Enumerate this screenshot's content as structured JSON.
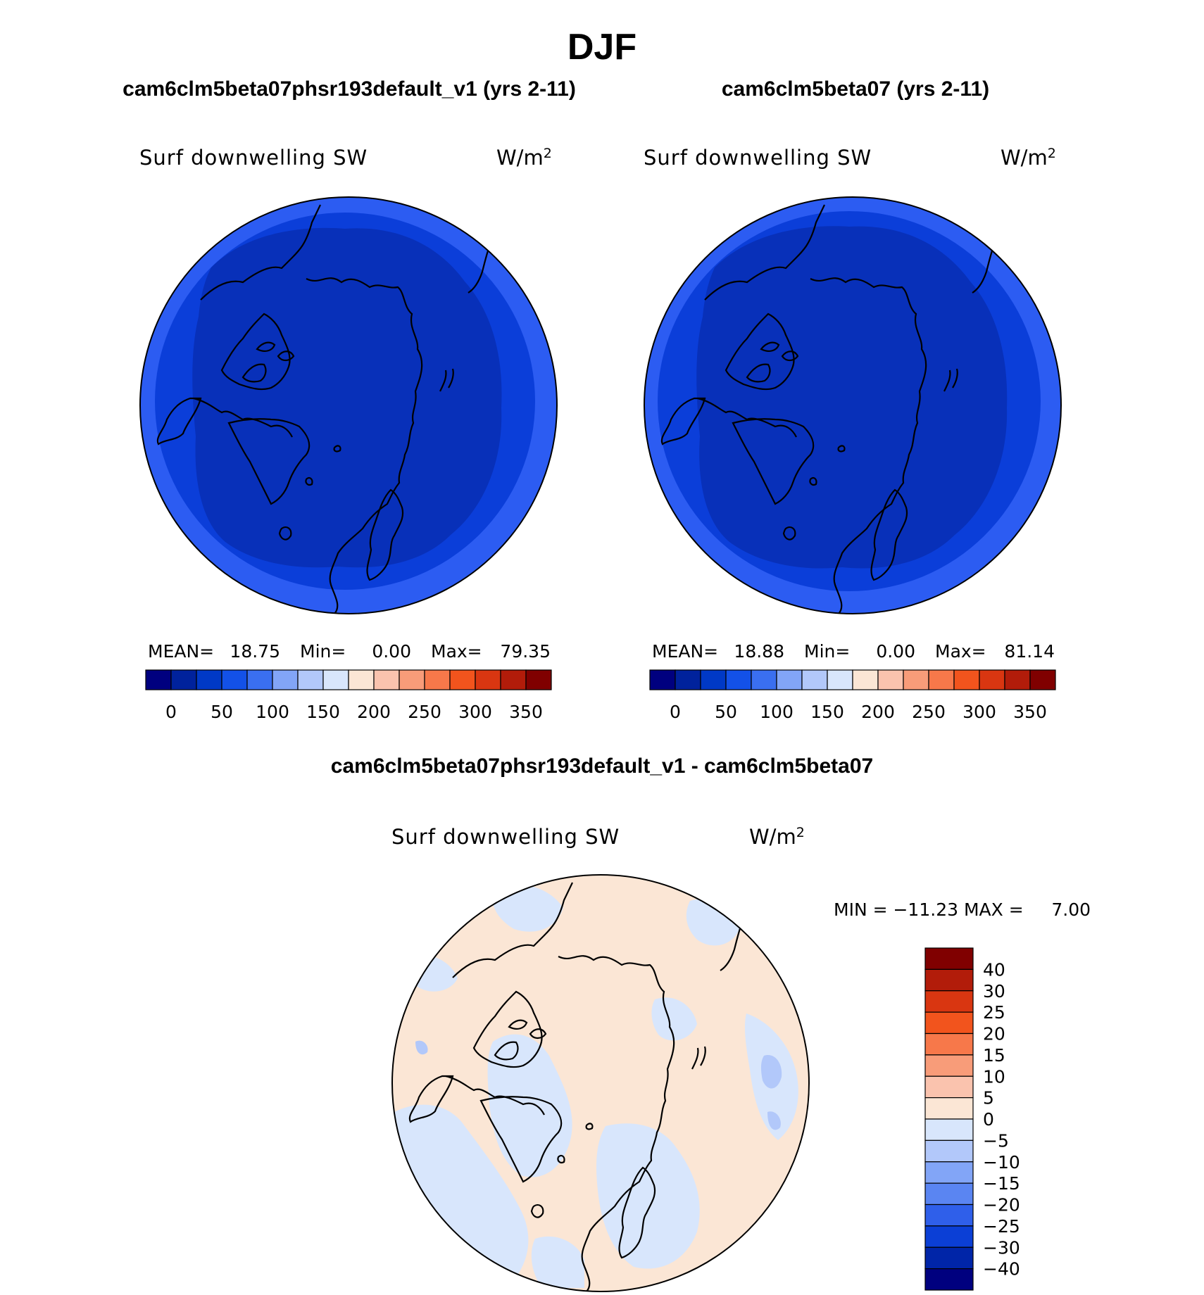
{
  "figure": {
    "title": "DJF"
  },
  "colors": {
    "abs_levels": [
      "#00007f",
      "#00229c",
      "#0039c6",
      "#1351e8",
      "#3a6ff0",
      "#82a5f7",
      "#b2c8fa",
      "#d8e6fc",
      "#fbe6d5",
      "#fac3ae",
      "#f89c79",
      "#f7784a",
      "#f2541d",
      "#d93611",
      "#b21c0a",
      "#800000"
    ],
    "map_bg_abs_outer": "#2c5cf2",
    "map_bg_abs_mid": "#0b3ed9",
    "map_bg_abs_inner": "#0830b9",
    "diff_pos": "#fbe6d5",
    "diff_neg": "#d8e6fc",
    "diff_neg2": "#b2c8fa"
  },
  "chart_data": [
    {
      "type": "heatmap",
      "panel": "left",
      "title": "cam6clm5beta07phsr193default_v1 (yrs 2-11)",
      "variable": "Surf downwelling SW",
      "units": "W/m",
      "units_exp": "2",
      "projection": "north polar stereographic",
      "stats": {
        "mean_label": "MEAN=",
        "mean": "18.75",
        "min_label": "Min=",
        "min": "0.00",
        "max_label": "Max=",
        "max": "79.35"
      },
      "colorbar": {
        "orientation": "horizontal",
        "tick_labels": [
          "0",
          "50",
          "100",
          "150",
          "200",
          "250",
          "300",
          "350"
        ]
      }
    },
    {
      "type": "heatmap",
      "panel": "right",
      "title": "cam6clm5beta07 (yrs 2-11)",
      "variable": "Surf downwelling SW",
      "units": "W/m",
      "units_exp": "2",
      "projection": "north polar stereographic",
      "stats": {
        "mean_label": "MEAN=",
        "mean": "18.88",
        "min_label": "Min=",
        "min": "0.00",
        "max_label": "Max=",
        "max": "81.14"
      },
      "colorbar": {
        "orientation": "horizontal",
        "tick_labels": [
          "0",
          "50",
          "100",
          "150",
          "200",
          "250",
          "300",
          "350"
        ]
      }
    },
    {
      "type": "heatmap",
      "panel": "difference",
      "title": "cam6clm5beta07phsr193default_v1 - cam6clm5beta07",
      "variable": "Surf downwelling SW",
      "units": "W/m",
      "units_exp": "2",
      "projection": "north polar stereographic",
      "stats_text": "MIN = −11.23 MAX =     7.00",
      "colorbar": {
        "orientation": "vertical",
        "tick_labels": [
          "40",
          "30",
          "25",
          "20",
          "15",
          "10",
          "5",
          "0",
          "−5",
          "−10",
          "−15",
          "−20",
          "−25",
          "−30",
          "−40"
        ],
        "colors": [
          "#800000",
          "#b21c0a",
          "#d93611",
          "#f2541d",
          "#f7784a",
          "#f89c79",
          "#fac3ae",
          "#fbe6d5",
          "#d8e6fc",
          "#b2c8fa",
          "#82a5f7",
          "#5a85f2",
          "#2f5fea",
          "#0b3fd6",
          "#0025a8",
          "#00007f"
        ]
      }
    }
  ]
}
